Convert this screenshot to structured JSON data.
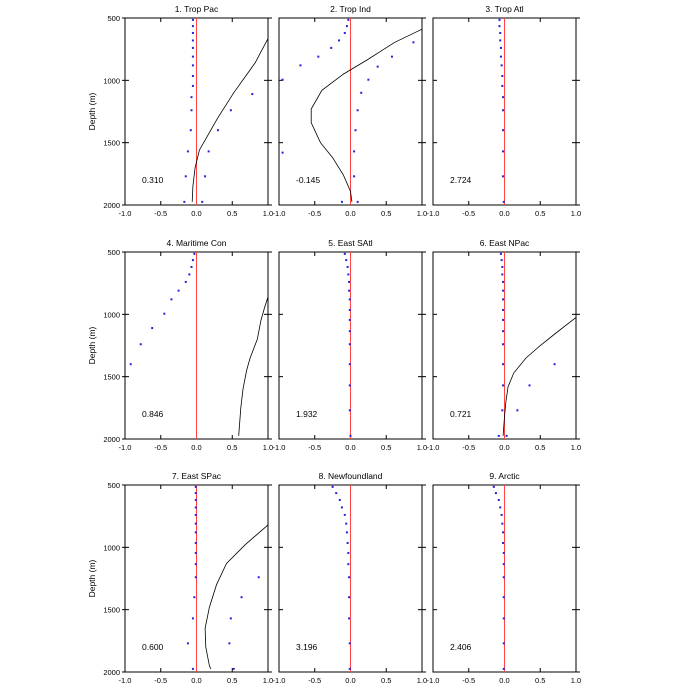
{
  "chart_data": {
    "type": "scatter",
    "layout": "3x3 panel grid",
    "ylabel": "Depth (m)",
    "xlim": [
      -1,
      1
    ],
    "ylim": [
      2000,
      500
    ],
    "y_axis_inverted": true,
    "xticks": [
      "-1.0",
      "-0.5",
      "0.0",
      "0.5",
      "1.0"
    ],
    "yticks": [
      "500",
      "1000",
      "1500",
      "2000"
    ],
    "colors": {
      "points": "#2222dd",
      "zero_line": "#ff4444",
      "curve": "#000000"
    },
    "panels": [
      {
        "title": "1. Trop Pac",
        "annotation": "0.310",
        "points": [
          [
            -0.05,
            515
          ],
          [
            -0.05,
            565
          ],
          [
            -0.05,
            620
          ],
          [
            -0.05,
            680
          ],
          [
            -0.05,
            740
          ],
          [
            -0.05,
            810
          ],
          [
            -0.05,
            880
          ],
          [
            -0.05,
            965
          ],
          [
            -0.05,
            1045
          ],
          [
            -0.07,
            1135
          ],
          [
            -0.07,
            1240
          ],
          [
            -0.08,
            1400
          ],
          [
            -0.12,
            1570
          ],
          [
            -0.15,
            1770
          ],
          [
            -0.17,
            1975
          ]
        ],
        "extra_points": [
          [
            0.78,
            1110
          ],
          [
            0.48,
            1240
          ],
          [
            0.3,
            1400
          ],
          [
            0.17,
            1570
          ],
          [
            0.12,
            1770
          ],
          [
            0.08,
            1975
          ]
        ],
        "curve": [
          [
            1.0,
            665
          ],
          [
            0.82,
            860
          ],
          [
            0.52,
            1100
          ],
          [
            0.3,
            1300
          ],
          [
            0.15,
            1450
          ],
          [
            0.04,
            1560
          ],
          [
            -0.02,
            1700
          ],
          [
            -0.05,
            1850
          ],
          [
            -0.06,
            1975
          ]
        ]
      },
      {
        "title": "2. Trop Ind",
        "annotation": "-0.145",
        "points": [
          [
            -0.03,
            515
          ],
          [
            -0.05,
            565
          ],
          [
            -0.08,
            620
          ],
          [
            -0.16,
            680
          ],
          [
            -0.27,
            740
          ],
          [
            -0.45,
            810
          ],
          [
            -0.7,
            880
          ],
          [
            -0.95,
            995
          ],
          [
            -0.95,
            1580
          ],
          [
            -0.12,
            1975
          ]
        ],
        "extra_points": [
          [
            0.88,
            695
          ],
          [
            0.58,
            810
          ],
          [
            0.38,
            890
          ],
          [
            0.25,
            995
          ],
          [
            0.15,
            1100
          ],
          [
            0.1,
            1240
          ],
          [
            0.07,
            1400
          ],
          [
            0.05,
            1570
          ],
          [
            0.05,
            1770
          ],
          [
            0.1,
            1975
          ]
        ],
        "curve": [
          [
            1.0,
            590
          ],
          [
            0.62,
            695
          ],
          [
            0.25,
            830
          ],
          [
            -0.1,
            950
          ],
          [
            -0.4,
            1080
          ],
          [
            -0.55,
            1230
          ],
          [
            -0.55,
            1340
          ],
          [
            -0.42,
            1500
          ],
          [
            -0.25,
            1620
          ],
          [
            -0.1,
            1760
          ],
          [
            0.0,
            1890
          ],
          [
            0.02,
            1975
          ]
        ]
      },
      {
        "title": "3. Trop Atl",
        "annotation": "2.724",
        "points": [
          [
            -0.07,
            515
          ],
          [
            -0.07,
            565
          ],
          [
            -0.06,
            620
          ],
          [
            -0.06,
            680
          ],
          [
            -0.05,
            740
          ],
          [
            -0.05,
            810
          ],
          [
            -0.04,
            880
          ],
          [
            -0.03,
            965
          ],
          [
            -0.03,
            1045
          ],
          [
            -0.02,
            1135
          ],
          [
            -0.02,
            1240
          ],
          [
            -0.02,
            1400
          ],
          [
            -0.02,
            1570
          ],
          [
            -0.02,
            1770
          ],
          [
            -0.01,
            1975
          ]
        ],
        "extra_points": [],
        "curve": []
      },
      {
        "title": "4. Maritime Con",
        "annotation": "0.846",
        "points": [
          [
            -0.03,
            515
          ],
          [
            -0.05,
            565
          ],
          [
            -0.07,
            620
          ],
          [
            -0.1,
            680
          ],
          [
            -0.15,
            740
          ],
          [
            -0.25,
            810
          ],
          [
            -0.35,
            880
          ],
          [
            -0.45,
            995
          ],
          [
            -0.62,
            1110
          ],
          [
            -0.78,
            1240
          ],
          [
            -0.92,
            1400
          ]
        ],
        "extra_points": [],
        "curve": [
          [
            1.0,
            860
          ],
          [
            0.95,
            950
          ],
          [
            0.9,
            1050
          ],
          [
            0.85,
            1200
          ],
          [
            0.75,
            1350
          ],
          [
            0.7,
            1450
          ],
          [
            0.65,
            1600
          ],
          [
            0.62,
            1750
          ],
          [
            0.6,
            1900
          ],
          [
            0.59,
            1975
          ]
        ]
      },
      {
        "title": "5. East SAtl",
        "annotation": "1.932",
        "points": [
          [
            -0.08,
            515
          ],
          [
            -0.06,
            565
          ],
          [
            -0.04,
            620
          ],
          [
            -0.03,
            680
          ],
          [
            -0.02,
            740
          ],
          [
            -0.02,
            810
          ],
          [
            -0.01,
            880
          ],
          [
            -0.01,
            965
          ],
          [
            -0.01,
            1045
          ],
          [
            -0.01,
            1135
          ],
          [
            -0.01,
            1240
          ],
          [
            -0.01,
            1400
          ],
          [
            -0.01,
            1570
          ],
          [
            -0.01,
            1770
          ],
          [
            0.0,
            1975
          ]
        ],
        "extra_points": [],
        "curve": []
      },
      {
        "title": "6. East NPac",
        "annotation": "0.721",
        "points": [
          [
            -0.05,
            515
          ],
          [
            -0.04,
            565
          ],
          [
            -0.03,
            620
          ],
          [
            -0.03,
            680
          ],
          [
            -0.02,
            740
          ],
          [
            -0.02,
            810
          ],
          [
            -0.02,
            880
          ],
          [
            -0.02,
            965
          ],
          [
            -0.02,
            1045
          ],
          [
            -0.02,
            1135
          ],
          [
            -0.02,
            1240
          ],
          [
            -0.02,
            1400
          ],
          [
            -0.02,
            1570
          ],
          [
            -0.03,
            1770
          ],
          [
            -0.08,
            1975
          ]
        ],
        "extra_points": [
          [
            0.7,
            1400
          ],
          [
            0.35,
            1570
          ],
          [
            0.18,
            1770
          ],
          [
            0.03,
            1975
          ]
        ],
        "curve": [
          [
            1.0,
            1025
          ],
          [
            0.72,
            1150
          ],
          [
            0.5,
            1250
          ],
          [
            0.3,
            1350
          ],
          [
            0.13,
            1470
          ],
          [
            0.05,
            1580
          ],
          [
            0.02,
            1700
          ],
          [
            0.0,
            1820
          ],
          [
            -0.02,
            1975
          ]
        ]
      },
      {
        "title": "7. East SPac",
        "annotation": "0.600",
        "points": [
          [
            -0.01,
            515
          ],
          [
            -0.01,
            565
          ],
          [
            -0.01,
            620
          ],
          [
            -0.01,
            680
          ],
          [
            -0.01,
            740
          ],
          [
            -0.01,
            810
          ],
          [
            -0.01,
            880
          ],
          [
            -0.01,
            965
          ],
          [
            -0.01,
            1045
          ],
          [
            -0.01,
            1135
          ],
          [
            -0.01,
            1240
          ],
          [
            -0.03,
            1400
          ],
          [
            -0.05,
            1570
          ],
          [
            -0.12,
            1770
          ],
          [
            -0.05,
            1975
          ]
        ],
        "extra_points": [
          [
            0.87,
            1240
          ],
          [
            0.63,
            1400
          ],
          [
            0.48,
            1570
          ],
          [
            0.46,
            1770
          ],
          [
            0.52,
            1975
          ]
        ],
        "curve": [
          [
            1.0,
            820
          ],
          [
            0.68,
            980
          ],
          [
            0.42,
            1130
          ],
          [
            0.28,
            1300
          ],
          [
            0.18,
            1480
          ],
          [
            0.12,
            1650
          ],
          [
            0.13,
            1800
          ],
          [
            0.18,
            1950
          ],
          [
            0.2,
            1975
          ]
        ]
      },
      {
        "title": "8. Newfoundland",
        "annotation": "3.196",
        "points": [
          [
            -0.25,
            515
          ],
          [
            -0.2,
            565
          ],
          [
            -0.15,
            620
          ],
          [
            -0.12,
            680
          ],
          [
            -0.08,
            740
          ],
          [
            -0.06,
            810
          ],
          [
            -0.05,
            880
          ],
          [
            -0.04,
            965
          ],
          [
            -0.03,
            1045
          ],
          [
            -0.03,
            1135
          ],
          [
            -0.02,
            1240
          ],
          [
            -0.02,
            1400
          ],
          [
            -0.02,
            1570
          ],
          [
            -0.01,
            1770
          ],
          [
            -0.01,
            1975
          ]
        ],
        "extra_points": [],
        "curve": []
      },
      {
        "title": "9. Arctic",
        "annotation": "2.406",
        "points": [
          [
            -0.15,
            515
          ],
          [
            -0.12,
            565
          ],
          [
            -0.08,
            620
          ],
          [
            -0.06,
            680
          ],
          [
            -0.04,
            740
          ],
          [
            -0.03,
            810
          ],
          [
            -0.02,
            880
          ],
          [
            -0.02,
            965
          ],
          [
            -0.01,
            1045
          ],
          [
            -0.01,
            1135
          ],
          [
            -0.01,
            1240
          ],
          [
            -0.01,
            1400
          ],
          [
            -0.01,
            1570
          ],
          [
            -0.01,
            1770
          ],
          [
            -0.01,
            1975
          ]
        ],
        "extra_points": [],
        "curve": []
      }
    ]
  }
}
